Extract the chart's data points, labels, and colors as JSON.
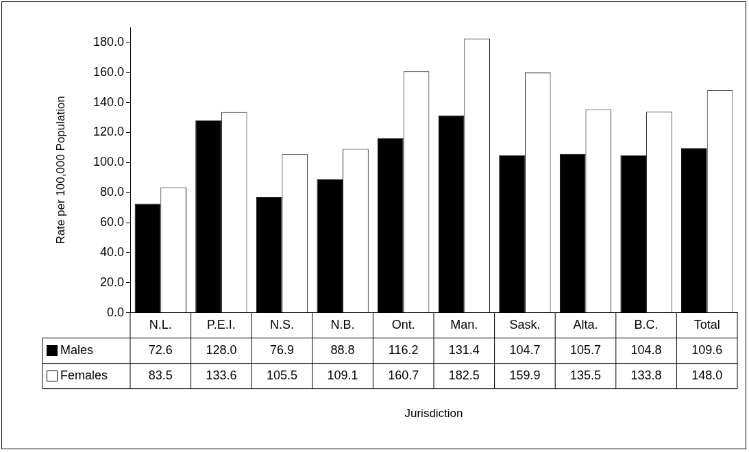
{
  "chart_data": {
    "type": "bar",
    "annotations": [
      "Jurisdiction"
    ],
    "ylabel": "Rate per 100,000 Population",
    "categories": [
      "N.L.",
      "P.E.I.",
      "N.S.",
      "N.B.",
      "Ont.",
      "Man.",
      "Sask.",
      "Alta.",
      "B.C.",
      "Total"
    ],
    "series": [
      {
        "name": "Males",
        "color": "#000000",
        "values": [
          72.6,
          128.0,
          76.9,
          88.8,
          116.2,
          131.4,
          104.7,
          105.7,
          104.8,
          109.6
        ],
        "value_labels": [
          "72.6",
          "128.0",
          "76.9",
          "88.8",
          "116.2",
          "131.4",
          "104.7",
          "105.7",
          "104.8",
          "109.6"
        ]
      },
      {
        "name": "Females",
        "color": "#ffffff",
        "values": [
          83.5,
          133.6,
          105.5,
          109.1,
          160.7,
          182.5,
          159.9,
          135.5,
          133.8,
          148.0
        ],
        "value_labels": [
          "83.5",
          "133.6",
          "105.5",
          "109.1",
          "160.7",
          "182.5",
          "159.9",
          "135.5",
          "133.8",
          "148.0"
        ]
      }
    ],
    "legend": "bottom left",
    "ylim": [
      0,
      190
    ],
    "yticks": [
      {
        "value": 0,
        "label": "0.0"
      },
      {
        "value": 20,
        "label": "20.0"
      },
      {
        "value": 40,
        "label": "40.0"
      },
      {
        "value": 60,
        "label": "60.0"
      },
      {
        "value": 80,
        "label": "80.0"
      },
      {
        "value": 100,
        "label": "100.0"
      },
      {
        "value": 120,
        "label": "120.0"
      },
      {
        "value": 140,
        "label": "140.0"
      },
      {
        "value": 160,
        "label": "160.0"
      },
      {
        "value": 180,
        "label": "180.0"
      }
    ]
  }
}
